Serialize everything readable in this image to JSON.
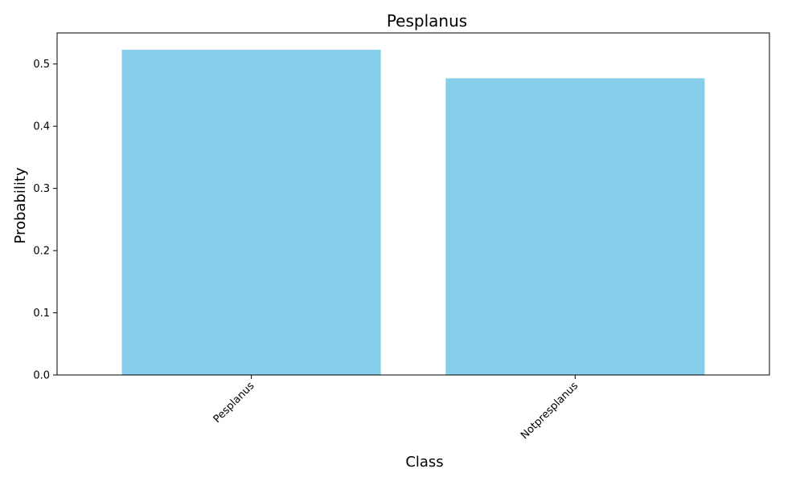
{
  "chart_data": {
    "type": "bar",
    "title": "Pesplanus",
    "xlabel": "Class",
    "ylabel": "Probability",
    "categories": [
      "Pesplanus",
      "Notpresplanus"
    ],
    "values": [
      0.523,
      0.477
    ],
    "ylim": [
      0,
      0.55
    ],
    "yticks": [
      "0.0",
      "0.1",
      "0.2",
      "0.3",
      "0.4",
      "0.5"
    ],
    "bar_color": "#87CEEB",
    "grid": false,
    "legend": "none"
  }
}
